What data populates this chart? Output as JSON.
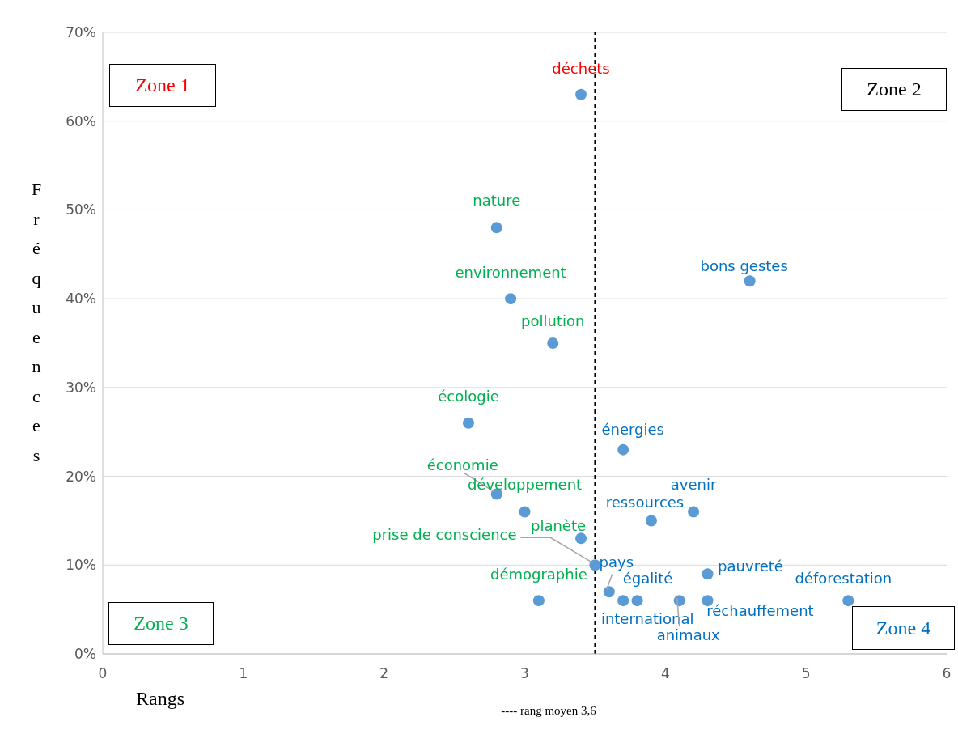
{
  "chart_data": {
    "type": "scatter",
    "xlabel": "Rangs",
    "ylabel": "Fréquences",
    "x": [
      3.4,
      2.8,
      2.9,
      3.2,
      2.6,
      3.7,
      2.8,
      3.0,
      3.4,
      4.6,
      3.9,
      4.2,
      3.5,
      3.6,
      3.8,
      3.7,
      4.1,
      4.3,
      4.3,
      5.3,
      3.1
    ],
    "series": [
      {
        "color": "#5b9bd5",
        "values": [
          63,
          48,
          40,
          35,
          26,
          23,
          18,
          16,
          13,
          42,
          15,
          16,
          10,
          7,
          6,
          6,
          6,
          6,
          9,
          6,
          6
        ]
      }
    ],
    "xlim": [
      0,
      6
    ],
    "xticks": [
      0,
      1,
      2,
      3,
      4,
      5,
      6
    ],
    "ylim": [
      0,
      70
    ],
    "yticks": [
      {
        "value": 0,
        "label": "0%"
      },
      {
        "value": 10,
        "label": "10%"
      },
      {
        "value": 20,
        "label": "20%"
      },
      {
        "value": 30,
        "label": "30%"
      },
      {
        "value": 40,
        "label": "40%"
      },
      {
        "value": 50,
        "label": "50%"
      },
      {
        "value": 60,
        "label": "60%"
      },
      {
        "value": 70,
        "label": "70%"
      }
    ],
    "grid": "y",
    "marker": "circle",
    "ref_lines": [
      {
        "axis": "x",
        "value": 3.5,
        "label": "---- rang moyen 3,6",
        "color": "#000000",
        "line_style": "dashed"
      }
    ],
    "annotations": [
      {
        "text": "déchets",
        "x": 3.4,
        "y": 63
      },
      {
        "text": "nature",
        "x": 2.8,
        "y": 48
      },
      {
        "text": "environnement",
        "x": 2.9,
        "y": 40
      },
      {
        "text": "pollution",
        "x": 3.2,
        "y": 35
      },
      {
        "text": "écologie",
        "x": 2.6,
        "y": 26
      },
      {
        "text": "énergies",
        "x": 3.7,
        "y": 23
      },
      {
        "text": "économie",
        "x": 2.8,
        "y": 18
      },
      {
        "text": "développement",
        "x": 3.0,
        "y": 16
      },
      {
        "text": "planète",
        "x": 3.4,
        "y": 13
      },
      {
        "text": "bons gestes",
        "x": 4.6,
        "y": 42
      },
      {
        "text": "ressources",
        "x": 3.9,
        "y": 15
      },
      {
        "text": "avenir",
        "x": 4.2,
        "y": 16
      },
      {
        "text": "prise de conscience",
        "x": 3.5,
        "y": 10
      },
      {
        "text": "pays",
        "x": 3.6,
        "y": 7
      },
      {
        "text": "égalité",
        "x": 3.8,
        "y": 6
      },
      {
        "text": "international",
        "x": 3.7,
        "y": 6
      },
      {
        "text": "animaux",
        "x": 4.1,
        "y": 6
      },
      {
        "text": "réchauffement",
        "x": 4.3,
        "y": 6
      },
      {
        "text": "pauvreté",
        "x": 4.3,
        "y": 9
      },
      {
        "text": "déforestation",
        "x": 5.3,
        "y": 6
      },
      {
        "text": "démographie",
        "x": 3.1,
        "y": 6
      },
      "Zone 1",
      "Zone 2",
      "Zone 3",
      "Zone 4"
    ]
  }
}
